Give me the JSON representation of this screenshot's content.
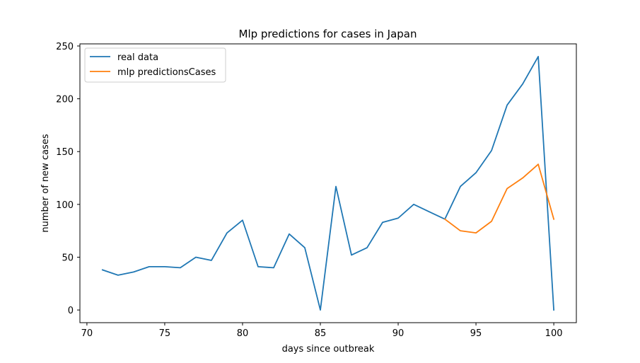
{
  "chart_data": {
    "type": "line",
    "title": "Mlp predictions for cases in  Japan",
    "xlabel": "days since outbreak",
    "ylabel": "number of new cases",
    "xlim": [
      69.55,
      101.45
    ],
    "ylim": [
      -12,
      252
    ],
    "xticks": [
      70,
      75,
      80,
      85,
      90,
      95,
      100
    ],
    "yticks": [
      0,
      50,
      100,
      150,
      200,
      250
    ],
    "grid": false,
    "legend_position": "top-left",
    "series": [
      {
        "name": "real data",
        "color": "#1f77b4",
        "x": [
          71,
          72,
          73,
          74,
          75,
          76,
          77,
          78,
          79,
          80,
          81,
          82,
          83,
          84,
          85,
          86,
          87,
          88,
          89,
          90,
          91,
          92,
          93,
          94,
          95,
          96,
          97,
          98,
          99,
          100
        ],
        "y": [
          38,
          33,
          36,
          41,
          41,
          40,
          50,
          47,
          73,
          85,
          41,
          40,
          72,
          59,
          0,
          117,
          52,
          59,
          83,
          87,
          100,
          93,
          86,
          117,
          130,
          151,
          194,
          214,
          240,
          0
        ]
      },
      {
        "name": "mlp predictionsCases",
        "color": "#ff7f0e",
        "x": [
          93,
          94,
          95,
          96,
          97,
          98,
          99,
          100
        ],
        "y": [
          86,
          75,
          73,
          84,
          115,
          125,
          138,
          86
        ]
      }
    ]
  }
}
